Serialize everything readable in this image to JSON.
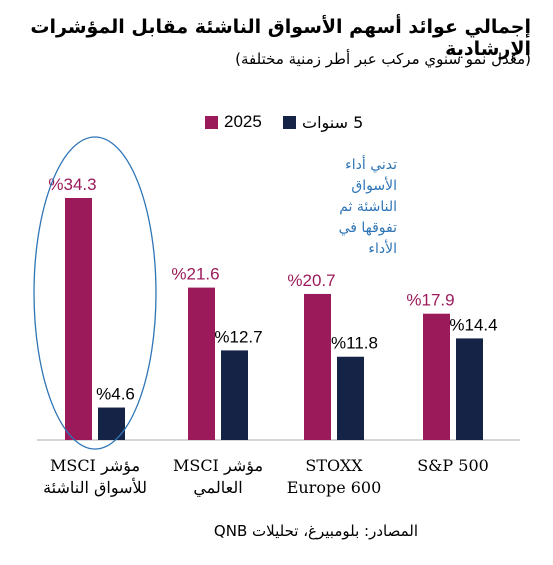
{
  "title": "إجمالي عوائد أسهم الأسواق الناشئة مقابل المؤشرات الإرشادية",
  "subtitle": "(معدل نمو سنوي مركب عبر أطر زمنية مختلفة)",
  "annotation": "تدني أداء الأسواق الناشئة ثم تفوقها في الأداء",
  "source": "المصادر: بلومبيرغ، تحليلات QNB",
  "colors": {
    "series_2025": "#9b1b5a",
    "series_5y": "#152347",
    "label_2025": "#9b1b5a",
    "label_5y": "#000000",
    "annotation": "#2e75b6",
    "highlight_ellipse": "#2e75b6",
    "baseline": "#c8c8c8"
  },
  "chart_data": {
    "type": "bar",
    "categories": [
      [
        "مؤشر MSCI",
        "للأسواق الناشئة"
      ],
      [
        "مؤشر MSCI",
        "العالمي"
      ],
      [
        "STOXX",
        "Europe 600"
      ],
      [
        "S&P 500"
      ]
    ],
    "series": [
      {
        "name": "2025",
        "values": [
          34.3,
          21.6,
          20.7,
          17.9
        ],
        "labels": [
          "%34.3",
          "%21.6",
          "%20.7",
          "%17.9"
        ]
      },
      {
        "name": "5 سنوات",
        "values": [
          4.6,
          12.7,
          11.8,
          14.4
        ],
        "labels": [
          "%4.6",
          "%12.7",
          "%11.8",
          "%14.4"
        ]
      }
    ],
    "ylim": [
      0,
      36
    ],
    "grid": false,
    "legend_position": "top-center",
    "highlighted_category": 0
  }
}
